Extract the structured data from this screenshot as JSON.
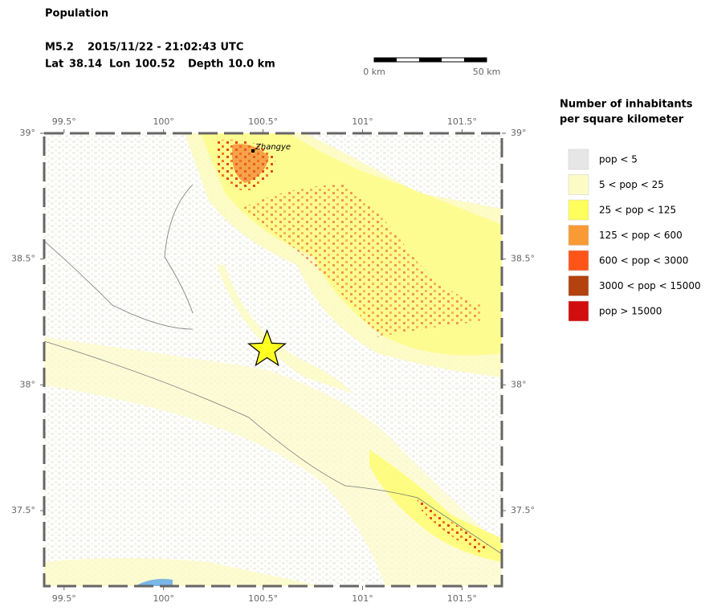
{
  "header": {
    "title": "Population",
    "event": {
      "magnitude": "M5.2",
      "datetime": "2015/11/22 - 21:02:43 UTC",
      "lat_label": "Lat",
      "lat": 38.14,
      "lon_label": "Lon",
      "lon": 100.52,
      "depth_label": "Depth",
      "depth": "10.0 km"
    }
  },
  "scale_bar": {
    "start_label": "0 km",
    "end_label": "50 km"
  },
  "map": {
    "xlim": [
      99.4,
      101.7
    ],
    "ylim": [
      37.2,
      39
    ],
    "xticks": [
      {
        "value": 99.5,
        "label": "99.5°"
      },
      {
        "value": 100,
        "label": "100°"
      },
      {
        "value": 100.5,
        "label": "100.5°"
      },
      {
        "value": 101,
        "label": "101°"
      },
      {
        "value": 101.5,
        "label": "101.5°"
      }
    ],
    "yticks": [
      {
        "value": 39,
        "label": "39°"
      },
      {
        "value": 38.5,
        "label": "38.5°"
      },
      {
        "value": 38,
        "label": "38°"
      },
      {
        "value": 37.5,
        "label": "37.5°"
      }
    ],
    "city": "Zhangye"
  },
  "legend": {
    "title": [
      "Number of inhabitants",
      "per square kilometer"
    ],
    "items": [
      {
        "label": "pop < 5",
        "color": "#e6e6e6"
      },
      {
        "label": "5 < pop < 25",
        "color": "#fcfbc6"
      },
      {
        "label": "25 < pop < 125",
        "color": "#fefe5c"
      },
      {
        "label": "125 < pop < 600",
        "color": "#f99a35"
      },
      {
        "label": "600 < pop < 3000",
        "color": "#fd5419"
      },
      {
        "label": "3000 < pop < 15000",
        "color": "#b3420f"
      },
      {
        "label": "pop > 15000",
        "color": "#d20d0d"
      }
    ]
  }
}
